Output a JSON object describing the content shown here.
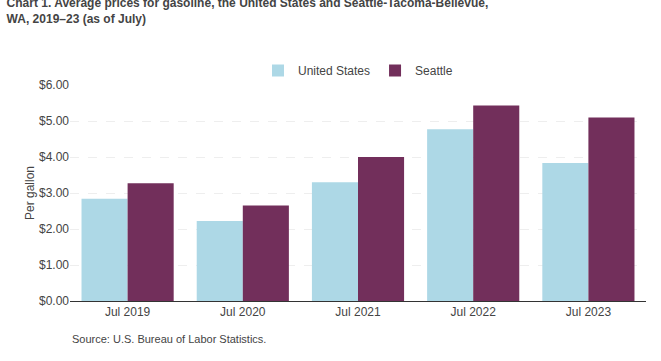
{
  "chart_data": {
    "type": "bar",
    "title": "Chart 1. Average prices for gasoline, the United States and Seattle-Tacoma-Bellevue,\nWA, 2019–23 (as of July)",
    "ylabel": "Per gallon",
    "annotations": [
      "Source: U.S. Bureau of Labor Statistics."
    ],
    "categories": [
      "Jul 2019",
      "Jul 2020",
      "Jul 2021",
      "Jul 2022",
      "Jul 2023"
    ],
    "series": [
      {
        "name": "United States",
        "color": "#add8e6",
        "values": [
          2.84,
          2.22,
          3.3,
          4.77,
          3.83
        ]
      },
      {
        "name": "Seattle",
        "color": "#722F5B",
        "values": [
          3.27,
          2.65,
          4.0,
          5.43,
          5.1
        ]
      }
    ],
    "ylim": [
      0,
      6.0
    ],
    "yticks": [
      {
        "value": 0.0,
        "label": "$0.00"
      },
      {
        "value": 1.0,
        "label": "$1.00"
      },
      {
        "value": 2.0,
        "label": "$2.00"
      },
      {
        "value": 3.0,
        "label": "$3.00"
      },
      {
        "value": 4.0,
        "label": "$4.00"
      },
      {
        "value": 5.0,
        "label": "$5.00"
      },
      {
        "value": 6.0,
        "label": "$6.00"
      }
    ],
    "grid": true,
    "legend": "top"
  }
}
